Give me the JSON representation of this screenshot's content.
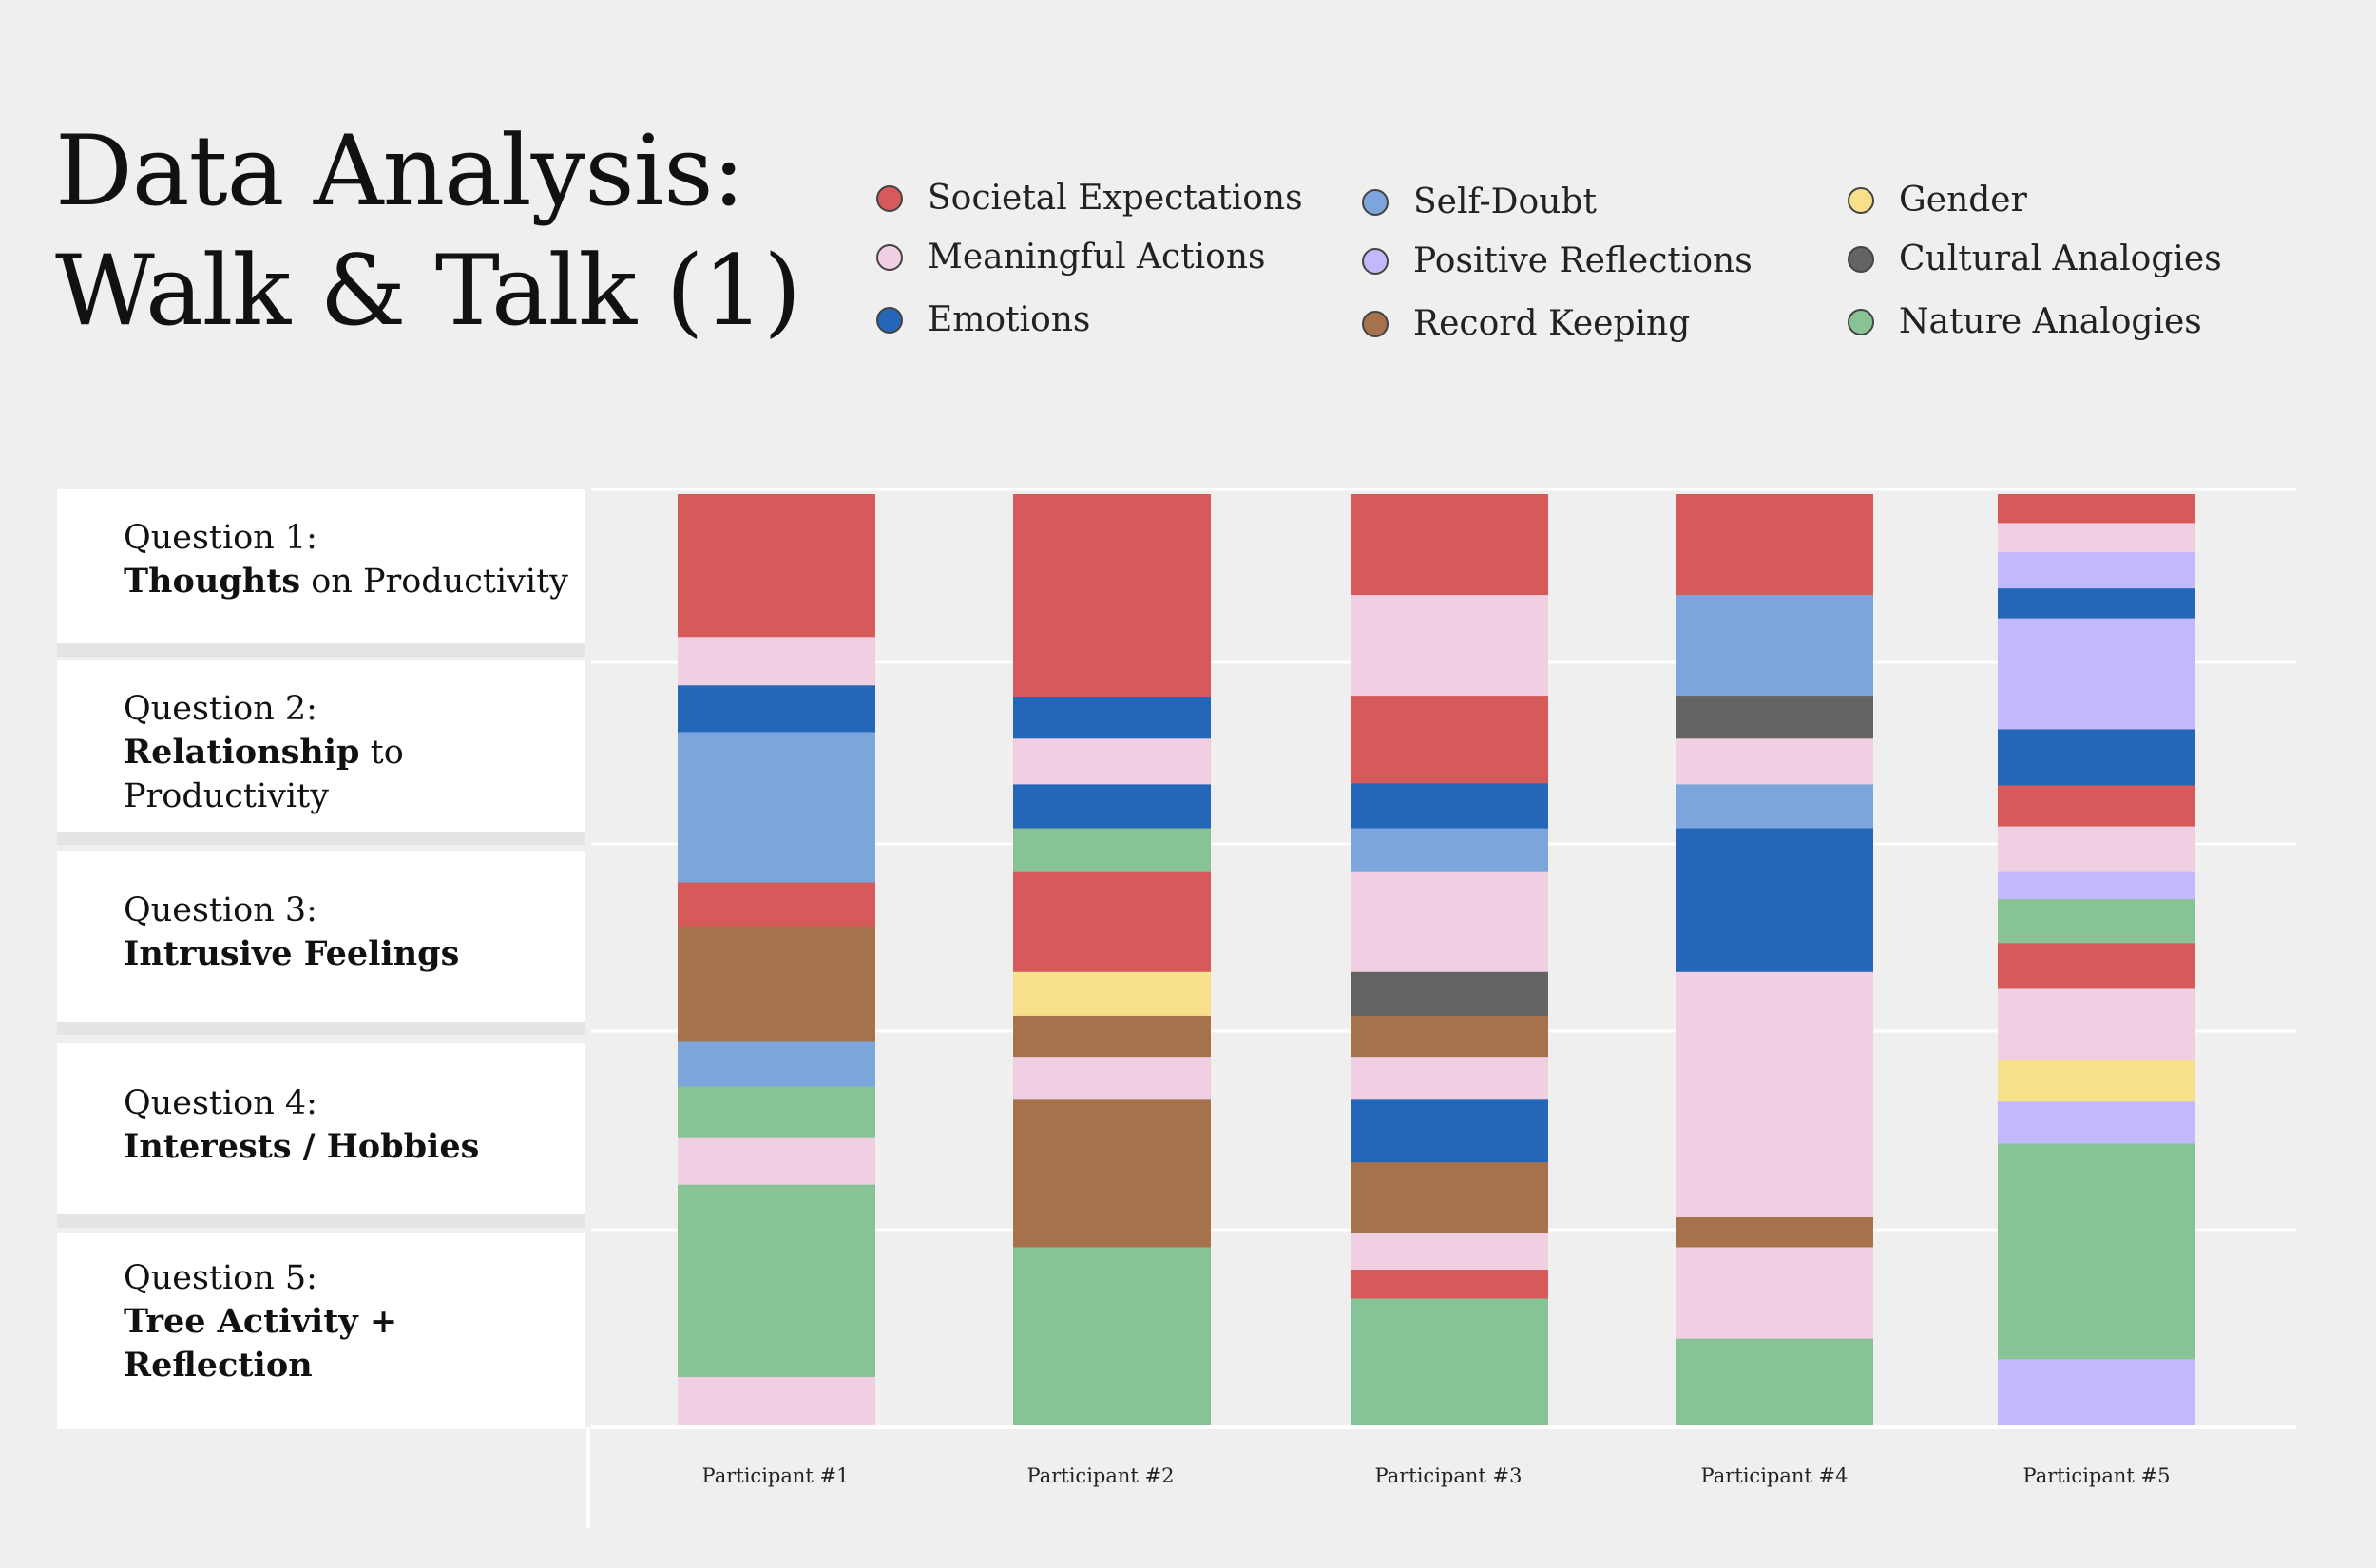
{
  "title_line1": "Data Analysis:",
  "title_line2": "Walk & Talk (1)",
  "legend": [
    {
      "label": "Societal Expectations",
      "color": "#d65a5a"
    },
    {
      "label": "Meaningful Actions",
      "color": "#f0cfe2"
    },
    {
      "label": "Emotions",
      "color": "#2466b8"
    },
    {
      "label": "Self-Doubt",
      "color": "#7ba5db"
    },
    {
      "label": "Positive Reflections",
      "color": "#c1b9fb"
    },
    {
      "label": "Record Keeping",
      "color": "#a5724c"
    },
    {
      "label": "Gender",
      "color": "#f8e08b"
    },
    {
      "label": "Cultural Analogies",
      "color": "#646464"
    },
    {
      "label": "Nature Analogies",
      "color": "#88c395"
    }
  ],
  "questions": [
    {
      "number": "Question 1:",
      "bold": "Thoughts",
      "rest": " on Productivity"
    },
    {
      "number": "Question 2:",
      "bold": "Relationship",
      "rest": " to Productivity"
    },
    {
      "number": "Question 3:",
      "bold": "Intrusive Feelings",
      "rest": ""
    },
    {
      "number": "Question 4:",
      "bold": "Interests / Hobbies",
      "rest": ""
    },
    {
      "number": "Question 5:",
      "bold": "Tree Activity + Reflection",
      "rest": ""
    }
  ],
  "chart_data": {
    "type": "bar",
    "stacked": true,
    "orientation": "vertical",
    "categories": [
      "Participant #1",
      "Participant #2",
      "Participant #3",
      "Participant #4",
      "Participant #5"
    ],
    "ylim": [
      0,
      100
    ],
    "participants": [
      {
        "name": "Participant #1",
        "segments": [
          {
            "code": "Societal Expectations",
            "value": 15.3
          },
          {
            "code": "Meaningful Actions",
            "value": 5.2
          },
          {
            "code": "Emotions",
            "value": 5.0
          },
          {
            "code": "Self-Doubt",
            "value": 16.1
          },
          {
            "code": "Societal Expectations",
            "value": 4.7
          },
          {
            "code": "Record Keeping",
            "value": 12.3
          },
          {
            "code": "Self-Doubt",
            "value": 4.9
          },
          {
            "code": "Nature Analogies",
            "value": 5.4
          },
          {
            "code": "Meaningful Actions",
            "value": 5.1
          },
          {
            "code": "Nature Analogies",
            "value": 20.6
          },
          {
            "code": "Meaningful Actions",
            "value": 5.4
          }
        ]
      },
      {
        "name": "Participant #2",
        "segments": [
          {
            "code": "Societal Expectations",
            "value": 21.7
          },
          {
            "code": "Emotions",
            "value": 4.5
          },
          {
            "code": "Meaningful Actions",
            "value": 4.9
          },
          {
            "code": "Emotions",
            "value": 4.7
          },
          {
            "code": "Nature Analogies",
            "value": 4.7
          },
          {
            "code": "Societal Expectations",
            "value": 10.7
          },
          {
            "code": "Gender",
            "value": 4.7
          },
          {
            "code": "Record Keeping",
            "value": 4.4
          },
          {
            "code": "Meaningful Actions",
            "value": 4.5
          },
          {
            "code": "Record Keeping",
            "value": 15.9
          },
          {
            "code": "Nature Analogies",
            "value": 19.3
          }
        ]
      },
      {
        "name": "Participant #3",
        "segments": [
          {
            "code": "Societal Expectations",
            "value": 10.8
          },
          {
            "code": "Meaningful Actions",
            "value": 10.8
          },
          {
            "code": "Societal Expectations",
            "value": 9.4
          },
          {
            "code": "Emotions",
            "value": 4.8
          },
          {
            "code": "Self-Doubt",
            "value": 4.7
          },
          {
            "code": "Meaningful Actions",
            "value": 10.7
          },
          {
            "code": "Cultural Analogies",
            "value": 4.7
          },
          {
            "code": "Record Keeping",
            "value": 4.4
          },
          {
            "code": "Meaningful Actions",
            "value": 4.5
          },
          {
            "code": "Emotions",
            "value": 6.8
          },
          {
            "code": "Record Keeping",
            "value": 7.6
          },
          {
            "code": "Meaningful Actions",
            "value": 3.9
          },
          {
            "code": "Societal Expectations",
            "value": 3.1
          },
          {
            "code": "Nature Analogies",
            "value": 13.8
          }
        ]
      },
      {
        "name": "Participant #4",
        "segments": [
          {
            "code": "Societal Expectations",
            "value": 10.8
          },
          {
            "code": "Self-Doubt",
            "value": 10.8
          },
          {
            "code": "Cultural Analogies",
            "value": 4.6
          },
          {
            "code": "Meaningful Actions",
            "value": 4.9
          },
          {
            "code": "Self-Doubt",
            "value": 4.7
          },
          {
            "code": "Emotions",
            "value": 15.4
          },
          {
            "code": "Meaningful Actions",
            "value": 26.3
          },
          {
            "code": "Record Keeping",
            "value": 3.2
          },
          {
            "code": "Meaningful Actions",
            "value": 9.8
          },
          {
            "code": "Nature Analogies",
            "value": 9.5
          }
        ]
      },
      {
        "name": "Participant #5",
        "segments": [
          {
            "code": "Societal Expectations",
            "value": 3.1
          },
          {
            "code": "Meaningful Actions",
            "value": 3.1
          },
          {
            "code": "Positive Reflections",
            "value": 3.9
          },
          {
            "code": "Emotions",
            "value": 3.2
          },
          {
            "code": "Positive Reflections",
            "value": 11.9
          },
          {
            "code": "Emotions",
            "value": 6.0
          },
          {
            "code": "Societal Expectations",
            "value": 4.4
          },
          {
            "code": "Meaningful Actions",
            "value": 4.9
          },
          {
            "code": "Positive Reflections",
            "value": 2.9
          },
          {
            "code": "Nature Analogies",
            "value": 4.7
          },
          {
            "code": "Societal Expectations",
            "value": 4.9
          },
          {
            "code": "Meaningful Actions",
            "value": 7.6
          },
          {
            "code": "Gender",
            "value": 4.5
          },
          {
            "code": "Positive Reflections",
            "value": 4.5
          },
          {
            "code": "Nature Analogies",
            "value": 23.1
          },
          {
            "code": "Positive Reflections",
            "value": 7.3
          }
        ]
      }
    ]
  }
}
